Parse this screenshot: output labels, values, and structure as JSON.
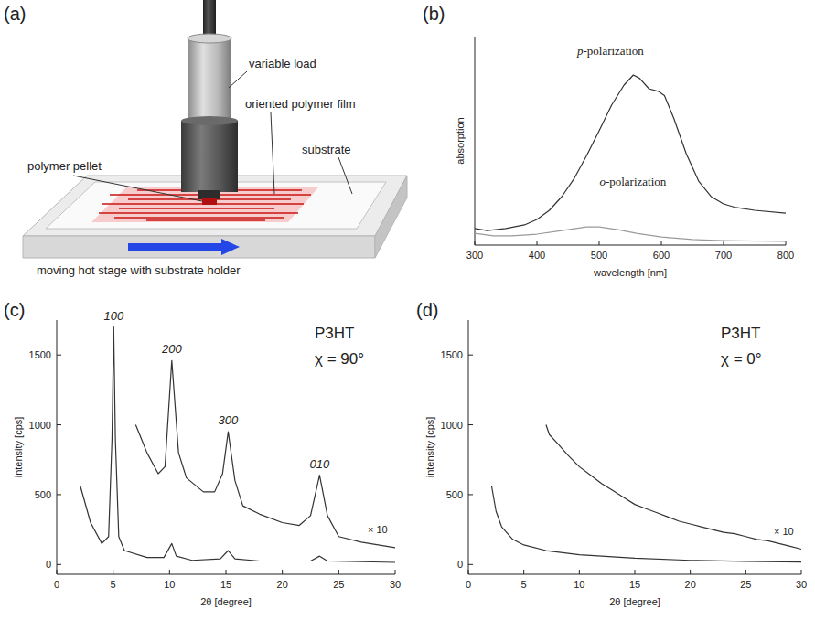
{
  "diagram": {
    "panel": "(a)",
    "labels": {
      "load": "variable load",
      "film": "oriented polymer film",
      "pellet": "polymer pellet",
      "substrate": "substrate",
      "stage": "moving hot stage with substrate holder"
    }
  },
  "chart_data": [
    {
      "type": "line",
      "panel": "(b)",
      "x_label": "wavelength [nm]",
      "y_label": "absorption",
      "xlim": [
        300,
        800
      ],
      "xticks": [
        300,
        400,
        500,
        600,
        700,
        800
      ],
      "ylim": [
        0,
        1.2
      ],
      "tick_labels": "x",
      "series": [
        {
          "name": "p-polarization",
          "color": "#333333",
          "x": [
            300,
            320,
            350,
            380,
            400,
            420,
            440,
            460,
            480,
            500,
            520,
            540,
            555,
            565,
            580,
            595,
            605,
            620,
            640,
            660,
            680,
            700,
            720,
            750,
            800
          ],
          "values": [
            0.095,
            0.084,
            0.095,
            0.116,
            0.147,
            0.2,
            0.279,
            0.384,
            0.516,
            0.658,
            0.805,
            0.921,
            0.979,
            0.96,
            0.9,
            0.885,
            0.86,
            0.73,
            0.526,
            0.368,
            0.279,
            0.237,
            0.216,
            0.2,
            0.184
          ]
        },
        {
          "name": "o-polarization",
          "color": "#9a9a9a",
          "x": [
            300,
            330,
            360,
            400,
            440,
            480,
            500,
            530,
            560,
            600,
            650,
            700,
            800
          ],
          "values": [
            0.068,
            0.053,
            0.053,
            0.063,
            0.084,
            0.105,
            0.105,
            0.089,
            0.068,
            0.047,
            0.032,
            0.026,
            0.021
          ]
        }
      ]
    },
    {
      "type": "line",
      "panel": "(c)",
      "title": "P3HT",
      "subtitle": "χ = 90°",
      "x_label": "2θ [degree]",
      "y_label": "intensity [cps]",
      "xlim": [
        0,
        30
      ],
      "xticks": [
        0,
        5,
        10,
        15,
        20,
        25,
        30
      ],
      "ylim": [
        -70,
        1750
      ],
      "yticks": [
        0,
        500,
        1000,
        1500
      ],
      "series": [
        {
          "color": "#333333",
          "x": [
            2.1,
            3,
            4,
            4.6,
            4.9,
            5.05,
            5.2,
            5.5,
            6,
            8,
            9.5,
            10.2,
            10.6,
            12,
            14.5,
            15.2,
            15.8,
            18,
            22.5,
            23.3,
            24,
            30
          ],
          "values": [
            560,
            300,
            150,
            200,
            900,
            1700,
            900,
            200,
            100,
            50,
            50,
            150,
            60,
            30,
            40,
            100,
            40,
            25,
            25,
            60,
            25,
            15
          ]
        },
        {
          "name": "× 10",
          "color": "#333333",
          "x": [
            7,
            7.5,
            8,
            9,
            9.6,
            10.2,
            10.8,
            11.5,
            13,
            14,
            14.7,
            15.2,
            15.8,
            16.5,
            18,
            20,
            21.5,
            22.5,
            23.3,
            24,
            25,
            27,
            30
          ],
          "values": [
            1000,
            900,
            800,
            650,
            700,
            1460,
            800,
            620,
            520,
            520,
            650,
            950,
            600,
            420,
            360,
            300,
            280,
            350,
            640,
            350,
            200,
            160,
            120
          ]
        }
      ],
      "annotations": [
        {
          "text": "100",
          "x": 5.05
        },
        {
          "text": "200",
          "x": 10.2
        },
        {
          "text": "300",
          "x": 15.2
        },
        {
          "text": "010",
          "x": 23.3
        }
      ]
    },
    {
      "type": "line",
      "panel": "(d)",
      "title": "P3HT",
      "subtitle": "χ = 0°",
      "x_label": "2θ [degree]",
      "y_label": "intensity [cps]",
      "xlim": [
        0,
        30
      ],
      "xticks": [
        0,
        5,
        10,
        15,
        20,
        25,
        30
      ],
      "ylim": [
        -70,
        1750
      ],
      "yticks": [
        0,
        500,
        1000,
        1500
      ],
      "series": [
        {
          "color": "#333333",
          "x": [
            2.1,
            2.5,
            3,
            4,
            5,
            7,
            10,
            15,
            20,
            25,
            30
          ],
          "values": [
            560,
            380,
            270,
            180,
            140,
            100,
            70,
            45,
            30,
            22,
            18
          ]
        },
        {
          "name": "× 10",
          "color": "#333333",
          "x": [
            7,
            7.3,
            8,
            9,
            10,
            11,
            12,
            13,
            14,
            15,
            16,
            17,
            18,
            19,
            20,
            21,
            22,
            23,
            24,
            25,
            26,
            27,
            28,
            29,
            30
          ],
          "values": [
            1000,
            930,
            870,
            780,
            700,
            640,
            580,
            530,
            480,
            430,
            400,
            370,
            340,
            310,
            290,
            270,
            250,
            230,
            220,
            200,
            180,
            170,
            150,
            130,
            110
          ]
        }
      ]
    }
  ]
}
